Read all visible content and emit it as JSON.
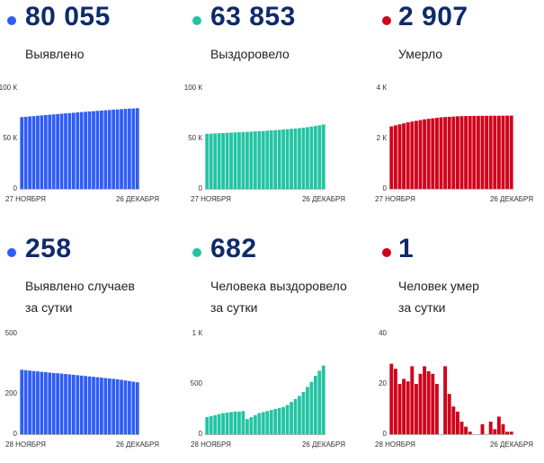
{
  "panels": [
    {
      "id": "detected-total",
      "big_number": "80 055",
      "label_lines": [
        "Выявлено"
      ],
      "color": "#2f5cf5",
      "chart_data": {
        "type": "bar",
        "x_start_label": "27 НОЯБРЯ",
        "x_end_label": "26 ДЕКАБРЯ",
        "y_ticks": [
          "100 К",
          "50 К",
          "0"
        ],
        "ylim": [
          0,
          100000
        ],
        "values": [
          71200,
          71500,
          71900,
          72200,
          72600,
          72900,
          73200,
          73600,
          73900,
          74200,
          74600,
          74900,
          75200,
          75500,
          75900,
          76200,
          76500,
          76800,
          77100,
          77400,
          77700,
          78000,
          78300,
          78600,
          78800,
          79100,
          79400,
          79600,
          79800,
          80055
        ]
      }
    },
    {
      "id": "recovered-total",
      "big_number": "63 853",
      "label_lines": [
        "Выздоровело"
      ],
      "color": "#22c4a3",
      "chart_data": {
        "type": "bar",
        "x_start_label": "27 НОЯБРЯ",
        "x_end_label": "26 ДЕКАБРЯ",
        "y_ticks": [
          "100 К",
          "50 К",
          "0"
        ],
        "ylim": [
          0,
          100000
        ],
        "values": [
          54600,
          54800,
          55000,
          55200,
          55400,
          55600,
          55800,
          56000,
          56200,
          56400,
          56600,
          56800,
          57000,
          57200,
          57400,
          57700,
          58000,
          58300,
          58600,
          58900,
          59200,
          59500,
          59800,
          60200,
          60700,
          61200,
          61800,
          62400,
          63100,
          63853
        ]
      }
    },
    {
      "id": "died-total",
      "big_number": "2 907",
      "label_lines": [
        "Умерло"
      ],
      "color": "#d0021b",
      "chart_data": {
        "type": "bar",
        "x_start_label": "27 НОЯБРЯ",
        "x_end_label": "26 ДЕКАБРЯ",
        "y_ticks": [
          "4 К",
          "2 К",
          "0"
        ],
        "ylim": [
          0,
          4000
        ],
        "values": [
          2480,
          2520,
          2560,
          2600,
          2640,
          2670,
          2700,
          2730,
          2760,
          2780,
          2800,
          2820,
          2840,
          2850,
          2860,
          2870,
          2880,
          2885,
          2890,
          2893,
          2895,
          2897,
          2899,
          2900,
          2901,
          2902,
          2903,
          2904,
          2906,
          2907
        ]
      }
    },
    {
      "id": "detected-daily",
      "big_number": "258",
      "label_lines": [
        "Выявлено случаев",
        "за сутки"
      ],
      "color": "#2f5cf5",
      "chart_data": {
        "type": "bar",
        "x_start_label": "28 НОЯБРЯ",
        "x_end_label": "26 ДЕКАБРЯ",
        "y_ticks": [
          "500",
          "200",
          "0"
        ],
        "ylim": [
          0,
          500
        ],
        "values": [
          320,
          318,
          316,
          314,
          312,
          310,
          308,
          306,
          304,
          303,
          301,
          299,
          297,
          295,
          293,
          291,
          289,
          287,
          285,
          283,
          281,
          279,
          277,
          275,
          273,
          270,
          267,
          264,
          261,
          258
        ]
      }
    },
    {
      "id": "recovered-daily",
      "big_number": "682",
      "label_lines": [
        "Человека выздоровело",
        "за сутки"
      ],
      "color": "#22c4a3",
      "chart_data": {
        "type": "bar",
        "x_start_label": "28 НОЯБРЯ",
        "x_end_label": "26 ДЕКАБРЯ",
        "y_ticks": [
          "1 К",
          "500",
          "0"
        ],
        "ylim": [
          0,
          1000
        ],
        "values": [
          170,
          180,
          190,
          200,
          210,
          215,
          220,
          225,
          225,
          230,
          150,
          170,
          190,
          210,
          220,
          230,
          240,
          250,
          260,
          270,
          290,
          320,
          350,
          380,
          420,
          470,
          520,
          580,
          630,
          682
        ]
      }
    },
    {
      "id": "died-daily",
      "big_number": "1",
      "label_lines": [
        "Человек умер",
        "за сутки"
      ],
      "color": "#d0021b",
      "chart_data": {
        "type": "bar",
        "x_start_label": "28 НОЯБРЯ",
        "x_end_label": "26 ДЕКАБРЯ",
        "y_ticks": [
          "40",
          "20",
          "0"
        ],
        "ylim": [
          0,
          40
        ],
        "values": [
          28,
          26,
          20,
          22,
          21,
          27,
          20,
          24,
          27,
          25,
          24,
          20,
          0,
          27,
          16,
          11,
          9,
          5,
          3,
          1,
          0,
          0,
          4,
          0,
          5,
          2,
          7,
          4,
          1,
          1
        ]
      }
    }
  ]
}
